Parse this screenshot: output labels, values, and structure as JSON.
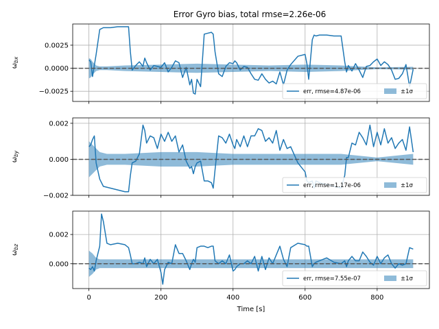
{
  "figure": {
    "title": "Error Gyro bias, total rmse=2.26e-06"
  },
  "chart_data": [
    {
      "type": "line",
      "ylabel": "ω_bx",
      "xlabel": "",
      "xlim": [
        -45,
        945
      ],
      "ylim": [
        -0.0036,
        0.0048
      ],
      "yticks": [
        -0.0025,
        0.0,
        0.0025
      ],
      "ytick_labels": [
        "−0.0025",
        "0.0000",
        "0.0025"
      ],
      "xticks": [
        0,
        200,
        400,
        600,
        800
      ],
      "show_xtick_labels": false,
      "grid": true,
      "legend_position": "lower-right",
      "series": [
        {
          "name": "err, rmse=4.87e-06",
          "color": "#1f77b4",
          "x": [
            0,
            5,
            10,
            15,
            20,
            30,
            40,
            60,
            80,
            100,
            110,
            115,
            120,
            130,
            140,
            150,
            155,
            160,
            170,
            180,
            190,
            200,
            210,
            220,
            230,
            240,
            250,
            260,
            270,
            280,
            285,
            290,
            295,
            300,
            310,
            320,
            330,
            340,
            345,
            350,
            360,
            370,
            380,
            390,
            400,
            405,
            410,
            420,
            430,
            440,
            450,
            460,
            470,
            480,
            490,
            500,
            510,
            520,
            530,
            540,
            550,
            560,
            580,
            600,
            605,
            610,
            620,
            625,
            630,
            640,
            660,
            680,
            700,
            710,
            715,
            720,
            730,
            740,
            750,
            760,
            770,
            780,
            790,
            800,
            810,
            820,
            830,
            840,
            850,
            860,
            870,
            880,
            890,
            900
          ],
          "y": [
            0.0009,
            0.0007,
            -0.0009,
            0.0003,
            0.0015,
            0.0042,
            0.0044,
            0.0044,
            0.0045,
            0.0045,
            0.0045,
            0.0018,
            -0.0002,
            0.0003,
            0.0007,
            0.0002,
            0.0011,
            0.0006,
            -0.0002,
            0.0003,
            0.0002,
            0.0001,
            0.0006,
            -0.0004,
            0.0001,
            0.0008,
            0.0006,
            -0.001,
            0.0001,
            -0.0018,
            -0.0012,
            -0.0027,
            -0.0028,
            -0.0012,
            -0.002,
            0.0037,
            0.0038,
            0.0039,
            0.0037,
            0.0018,
            -0.0006,
            -0.0009,
            0.0002,
            0.0006,
            0.0005,
            0.0008,
            0.0006,
            -0.0002,
            0.0002,
            0.0001,
            -0.0006,
            -0.0012,
            -0.0013,
            -0.0006,
            -0.0012,
            -0.0016,
            -0.0014,
            -0.0017,
            -0.0004,
            -0.0018,
            -0.0002,
            0.0004,
            0.0013,
            0.0015,
            0.0005,
            -0.0012,
            0.0031,
            0.0036,
            0.0035,
            0.0036,
            0.0036,
            0.0035,
            0.0035,
            0.0007,
            -0.0004,
            0.0003,
            -0.0003,
            0.0005,
            -0.0002,
            -0.001,
            0.0002,
            0.0003,
            0.0007,
            0.001,
            0.0003,
            0.0007,
            0.0004,
            -0.0002,
            -0.0012,
            -0.0011,
            -0.0006,
            0.0004,
            -0.002,
            -0.0001
          ]
        },
        {
          "name": "±1σ",
          "color": "#1f77b4",
          "fill_alpha": 0.5,
          "x": [
            0,
            5,
            10,
            20,
            30,
            50,
            100,
            200,
            300,
            400,
            500,
            600,
            700,
            800,
            900
          ],
          "sigma": [
            0.0011,
            0.001,
            0.0007,
            0.0003,
            0.0002,
            0.0002,
            0.0003,
            0.0004,
            0.0005,
            0.0004,
            0.0003,
            0.0004,
            0.0003,
            0.0001,
            0.00015
          ]
        }
      ]
    },
    {
      "type": "line",
      "ylabel": "ω_by",
      "xlabel": "",
      "xlim": [
        -45,
        945
      ],
      "ylim": [
        -0.002,
        0.0023
      ],
      "yticks": [
        -0.002,
        0.0,
        0.002
      ],
      "ytick_labels": [
        "−0.002",
        "0.000",
        "0.002"
      ],
      "xticks": [
        0,
        200,
        400,
        600,
        800
      ],
      "show_xtick_labels": false,
      "grid": true,
      "legend_position": "lower-right",
      "series": [
        {
          "name": "err, rmse=1.17e-06",
          "color": "#1f77b4",
          "x": [
            0,
            5,
            10,
            15,
            20,
            30,
            40,
            60,
            80,
            100,
            110,
            115,
            120,
            130,
            140,
            150,
            155,
            160,
            170,
            180,
            190,
            200,
            210,
            220,
            230,
            240,
            250,
            260,
            270,
            280,
            285,
            290,
            295,
            300,
            310,
            320,
            330,
            340,
            345,
            350,
            360,
            370,
            380,
            390,
            400,
            405,
            410,
            420,
            430,
            440,
            450,
            460,
            470,
            480,
            490,
            500,
            510,
            520,
            530,
            540,
            550,
            560,
            580,
            600,
            605,
            610,
            620,
            625,
            630,
            640,
            660,
            680,
            700,
            710,
            715,
            720,
            730,
            740,
            750,
            760,
            770,
            780,
            790,
            800,
            810,
            820,
            830,
            840,
            850,
            860,
            870,
            880,
            890,
            900
          ],
          "y": [
            0.0007,
            0.0008,
            0.0011,
            0.0013,
            -0.0002,
            -0.0011,
            -0.0015,
            -0.0016,
            -0.0017,
            -0.0018,
            -0.0018,
            -0.0009,
            -0.0002,
            -0.0001,
            0.0003,
            0.0019,
            0.0016,
            0.0009,
            0.0013,
            0.0012,
            0.0006,
            0.0014,
            0.001,
            0.0015,
            0.001,
            0.0013,
            0.0004,
            0.0008,
            -0.0001,
            -0.0005,
            -0.0004,
            -0.0008,
            -0.0004,
            -0.0002,
            -0.0001,
            -0.0012,
            -0.0012,
            -0.0013,
            -0.0016,
            -0.0006,
            0.0013,
            0.0012,
            0.0009,
            0.0014,
            0.0008,
            0.0006,
            0.0011,
            0.0007,
            0.0013,
            0.0007,
            0.0013,
            0.0013,
            0.0017,
            0.0016,
            0.001,
            0.0012,
            0.0009,
            0.0016,
            0.0005,
            0.0011,
            0.0006,
            0.0007,
            -0.0002,
            -0.0007,
            -0.0012,
            -0.0013,
            -0.0012,
            -0.0016,
            -0.0012,
            -0.0013,
            -0.0014,
            -0.0015,
            -0.0016,
            -0.0009,
            0.0001,
            0.0001,
            0.0009,
            0.0008,
            0.0015,
            0.0012,
            0.0008,
            0.0019,
            0.0007,
            0.0015,
            0.0008,
            0.0017,
            0.0009,
            0.0012,
            0.0006,
            0.0009,
            0.0011,
            0.0005,
            0.0018,
            0.0004
          ]
        },
        {
          "name": "±1σ",
          "color": "#1f77b4",
          "fill_alpha": 0.5,
          "x": [
            0,
            5,
            10,
            20,
            30,
            50,
            100,
            200,
            300,
            400,
            500,
            600,
            700,
            800,
            900
          ],
          "sigma": [
            0.001,
            0.0009,
            0.0008,
            0.0006,
            0.0004,
            0.0003,
            0.0003,
            0.0004,
            0.0004,
            0.0003,
            0.0003,
            0.0003,
            0.0003,
            0.0001,
            0.0003
          ]
        }
      ]
    },
    {
      "type": "line",
      "ylabel": "ω_bz",
      "xlabel": "Time [s]",
      "xlim": [
        -45,
        945
      ],
      "ylim": [
        -0.0017,
        0.0036
      ],
      "yticks": [
        0.0,
        0.002
      ],
      "ytick_labels": [
        "0.000",
        "0.002"
      ],
      "xticks": [
        0,
        200,
        400,
        600,
        800
      ],
      "xtick_labels": [
        "0",
        "200",
        "400",
        "600",
        "800"
      ],
      "show_xtick_labels": true,
      "grid": true,
      "legend_position": "lower-right",
      "series": [
        {
          "name": "err, rmse=7.55e-07",
          "color": "#1f77b4",
          "x": [
            0,
            5,
            10,
            15,
            20,
            30,
            35,
            40,
            50,
            60,
            80,
            100,
            110,
            115,
            120,
            130,
            140,
            150,
            155,
            160,
            170,
            180,
            190,
            200,
            205,
            210,
            220,
            230,
            240,
            250,
            260,
            270,
            280,
            285,
            290,
            295,
            300,
            310,
            320,
            330,
            340,
            345,
            350,
            360,
            370,
            380,
            390,
            400,
            405,
            410,
            420,
            430,
            440,
            450,
            460,
            470,
            480,
            490,
            500,
            510,
            520,
            530,
            540,
            550,
            560,
            580,
            600,
            605,
            610,
            620,
            625,
            630,
            640,
            660,
            680,
            700,
            710,
            715,
            720,
            730,
            740,
            750,
            760,
            770,
            780,
            790,
            800,
            810,
            820,
            830,
            840,
            850,
            860,
            870,
            880,
            890,
            900
          ],
          "y": [
            -0.0003,
            -0.0004,
            -0.0002,
            -0.0005,
            0.0002,
            0.0012,
            0.0034,
            0.0029,
            0.0014,
            0.0013,
            0.0014,
            0.0013,
            0.0011,
            0.0006,
            0.0,
            0.0,
            0.0001,
            0.0,
            0.0004,
            -0.0002,
            0.0003,
            0.0,
            0.0003,
            -0.0006,
            -0.0014,
            -0.0004,
            0.0001,
            0.0,
            0.0013,
            0.0007,
            0.0007,
            0.0002,
            -0.0004,
            0.0,
            0.0003,
            0.0001,
            0.0011,
            0.0012,
            0.0012,
            0.0011,
            0.0012,
            0.0012,
            0.0002,
            0.0,
            0.0002,
            0.0,
            0.0006,
            -0.0005,
            -0.0004,
            -0.0002,
            0.0,
            0.0,
            0.0002,
            0.0,
            0.0005,
            -0.0005,
            0.0005,
            -0.0004,
            0.0004,
            0.0,
            0.0006,
            0.0012,
            0.0003,
            -0.0002,
            0.0011,
            0.0014,
            0.0013,
            0.0012,
            0.0012,
            -0.0002,
            0.0,
            0.0001,
            0.0002,
            0.0004,
            0.0001,
            0.0,
            0.0002,
            -0.0002,
            0.0002,
            0.0005,
            0.0002,
            0.0002,
            0.0008,
            0.0005,
            0.0001,
            -0.0001,
            0.0005,
            0.0,
            0.0004,
            0.0006,
            0.0,
            -0.0003,
            0.0,
            -0.0001,
            0.0,
            0.0011,
            0.001
          ]
        },
        {
          "name": "±1σ",
          "color": "#1f77b4",
          "fill_alpha": 0.5,
          "x": [
            0,
            5,
            10,
            20,
            30,
            50,
            100,
            200,
            300,
            400,
            500,
            600,
            700,
            800,
            900
          ],
          "sigma": [
            0.0009,
            0.0008,
            0.0007,
            0.0004,
            0.0003,
            0.0003,
            0.0003,
            0.0003,
            0.0003,
            0.0003,
            0.0003,
            0.0003,
            0.0003,
            0.0003,
            0.0003
          ]
        }
      ]
    }
  ]
}
